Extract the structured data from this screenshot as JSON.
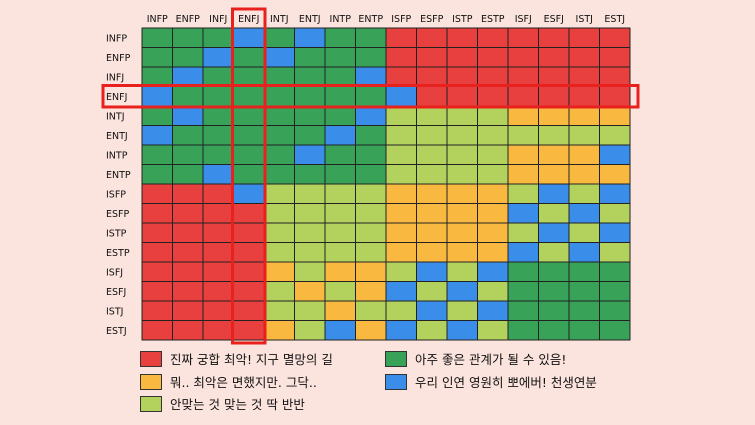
{
  "chart_data": {
    "type": "heatmap",
    "types": [
      "INFP",
      "ENFP",
      "INFJ",
      "ENFJ",
      "INTJ",
      "ENTJ",
      "INTP",
      "ENTP",
      "ISFP",
      "ESFP",
      "ISTP",
      "ESTP",
      "ISFJ",
      "ESFJ",
      "ISTJ",
      "ESTJ"
    ],
    "rows": [
      "INFP",
      "ENFP",
      "INFJ",
      "ENFJ",
      "INTJ",
      "ENTJ",
      "INTP",
      "ENTP",
      "ISFP",
      "ESFP",
      "ISTP",
      "ESTP",
      "ISFJ",
      "ESFJ",
      "ISTJ",
      "ESTJ"
    ],
    "columns": [
      "INFP",
      "ENFP",
      "INFJ",
      "ENFJ",
      "INTJ",
      "ENTJ",
      "INTP",
      "ENTP",
      "ISFP",
      "ESFP",
      "ISTP",
      "ESTP",
      "ISFJ",
      "ESFJ",
      "ISTJ",
      "ESTJ"
    ],
    "levels": {
      "1": {
        "label": "진짜 궁합 최악! 지구 멸망의 길",
        "color": "#e8403f"
      },
      "2": {
        "label": "뭐.. 최악은 면했지만. 그닥..",
        "color": "#f9b940"
      },
      "3": {
        "label": "안맞는 것 맞는 것 딱 반반",
        "color": "#b2d25d"
      },
      "4": {
        "label": "아주 좋은 관계가 될 수 있음!",
        "color": "#37a258"
      },
      "5": {
        "label": "우리 인연 영원히 뽀에버! 천생연분",
        "color": "#3a8de8"
      }
    },
    "matrix": [
      [
        4,
        4,
        4,
        5,
        4,
        5,
        4,
        4,
        1,
        1,
        1,
        1,
        1,
        1,
        1,
        1
      ],
      [
        4,
        4,
        5,
        4,
        5,
        4,
        4,
        4,
        1,
        1,
        1,
        1,
        1,
        1,
        1,
        1
      ],
      [
        4,
        5,
        4,
        4,
        4,
        4,
        4,
        5,
        1,
        1,
        1,
        1,
        1,
        1,
        1,
        1
      ],
      [
        5,
        4,
        4,
        4,
        4,
        4,
        4,
        4,
        5,
        1,
        1,
        1,
        1,
        1,
        1,
        1
      ],
      [
        4,
        5,
        4,
        4,
        4,
        4,
        4,
        5,
        3,
        3,
        3,
        3,
        2,
        2,
        2,
        2
      ],
      [
        5,
        4,
        4,
        4,
        4,
        4,
        5,
        4,
        3,
        3,
        3,
        3,
        3,
        3,
        3,
        3
      ],
      [
        4,
        4,
        4,
        4,
        4,
        5,
        4,
        4,
        3,
        3,
        3,
        3,
        2,
        2,
        2,
        5
      ],
      [
        4,
        4,
        5,
        4,
        4,
        4,
        4,
        4,
        3,
        3,
        3,
        3,
        2,
        2,
        2,
        2
      ],
      [
        1,
        1,
        1,
        5,
        3,
        3,
        3,
        3,
        2,
        2,
        2,
        2,
        3,
        5,
        3,
        5
      ],
      [
        1,
        1,
        1,
        1,
        3,
        3,
        3,
        3,
        2,
        2,
        2,
        2,
        5,
        3,
        5,
        3
      ],
      [
        1,
        1,
        1,
        1,
        3,
        3,
        3,
        3,
        2,
        2,
        2,
        2,
        3,
        5,
        3,
        5
      ],
      [
        1,
        1,
        1,
        1,
        3,
        3,
        3,
        3,
        2,
        2,
        2,
        2,
        5,
        3,
        5,
        3
      ],
      [
        1,
        1,
        1,
        1,
        2,
        3,
        2,
        2,
        3,
        5,
        3,
        5,
        4,
        4,
        4,
        4
      ],
      [
        1,
        1,
        1,
        1,
        3,
        2,
        3,
        2,
        5,
        3,
        5,
        3,
        4,
        4,
        4,
        4
      ],
      [
        1,
        1,
        1,
        1,
        3,
        3,
        2,
        3,
        3,
        5,
        3,
        5,
        4,
        4,
        4,
        4
      ],
      [
        1,
        1,
        1,
        1,
        2,
        3,
        5,
        2,
        5,
        3,
        5,
        3,
        4,
        4,
        4,
        4
      ]
    ],
    "highlight": {
      "row": "ENFJ",
      "column": "ENFJ",
      "color": "#e8201e"
    }
  }
}
